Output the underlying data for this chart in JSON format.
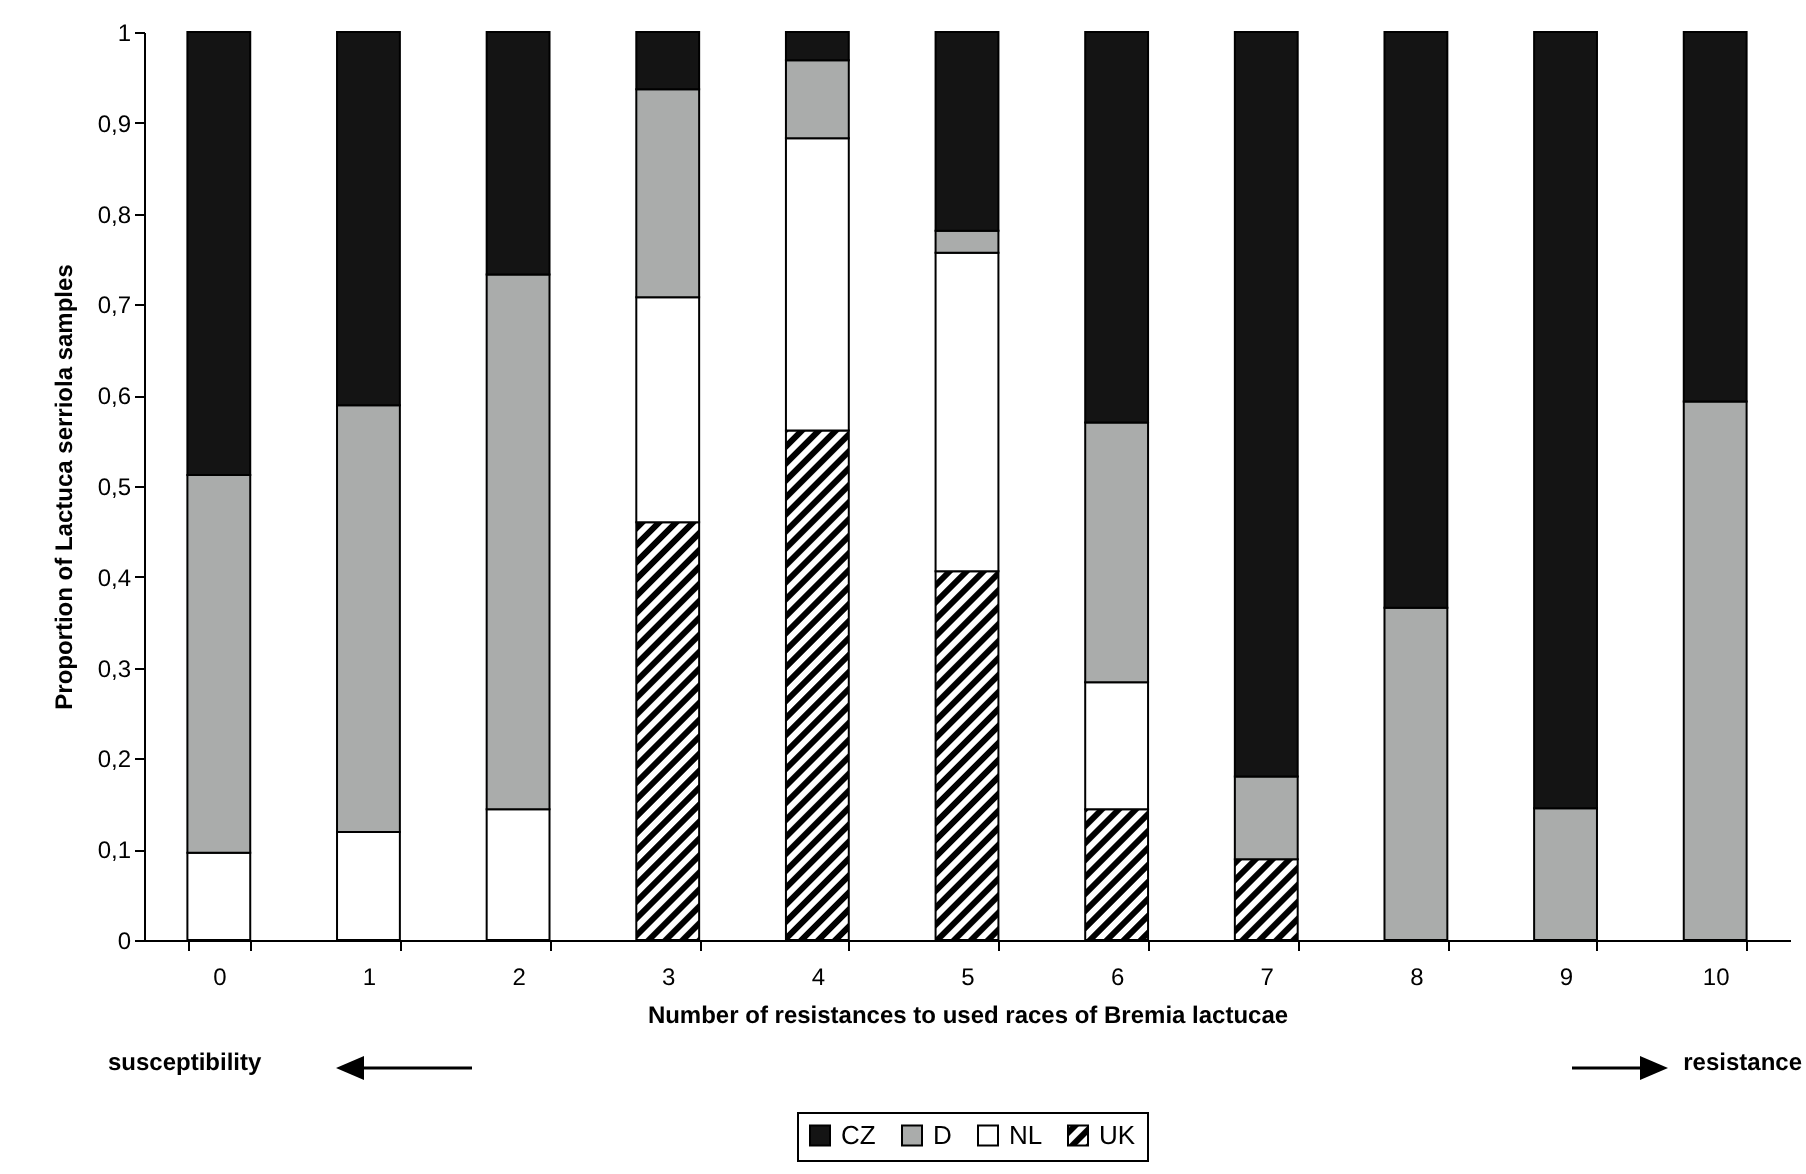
{
  "chart_data": {
    "type": "bar",
    "stacked": true,
    "xlabel": "Number of resistances to used races of Bremia lactucae",
    "ylabel": "Proportion of Lactuca serriola samples",
    "categories": [
      "0",
      "1",
      "2",
      "3",
      "4",
      "5",
      "6",
      "7",
      "8",
      "9",
      "10"
    ],
    "series": [
      {
        "name": "UK",
        "color": "#000000",
        "values": [
          null,
          null,
          null,
          0.46,
          0.561,
          0.406,
          0.144,
          0.089,
          null,
          null,
          null
        ]
      },
      {
        "name": "NL",
        "color": "#ffffff",
        "values": [
          0.096,
          0.119,
          0.144,
          0.248,
          0.322,
          0.351,
          0.14,
          null,
          null,
          null,
          null
        ]
      },
      {
        "name": "D",
        "color": "#aaacab",
        "values": [
          0.416,
          0.47,
          0.589,
          0.229,
          0.086,
          0.024,
          0.286,
          0.091,
          0.366,
          0.145,
          0.593
        ]
      },
      {
        "name": "CZ",
        "color": "#141414",
        "values": [
          0.488,
          0.411,
          0.267,
          0.063,
          0.031,
          0.219,
          0.43,
          0.82,
          0.634,
          0.855,
          0.407
        ]
      }
    ],
    "ylim": [
      0,
      1
    ],
    "yticks": [
      0,
      {
        "value": 0.1,
        "label": "0,1"
      },
      {
        "value": 0.2,
        "label": "0,2"
      },
      {
        "value": 0.3,
        "label": "0,3"
      },
      {
        "value": 0.4,
        "label": "0,4"
      },
      {
        "value": 0.5,
        "label": "0,5"
      },
      {
        "value": 0.6,
        "label": "0,6"
      },
      {
        "value": 0.7,
        "label": "0,7"
      },
      {
        "value": 0.8,
        "label": "0,8"
      },
      {
        "value": 0.9,
        "label": "0,9"
      },
      1
    ],
    "legend": "bottom",
    "annotations": [
      "susceptibility",
      "resistance"
    ]
  }
}
